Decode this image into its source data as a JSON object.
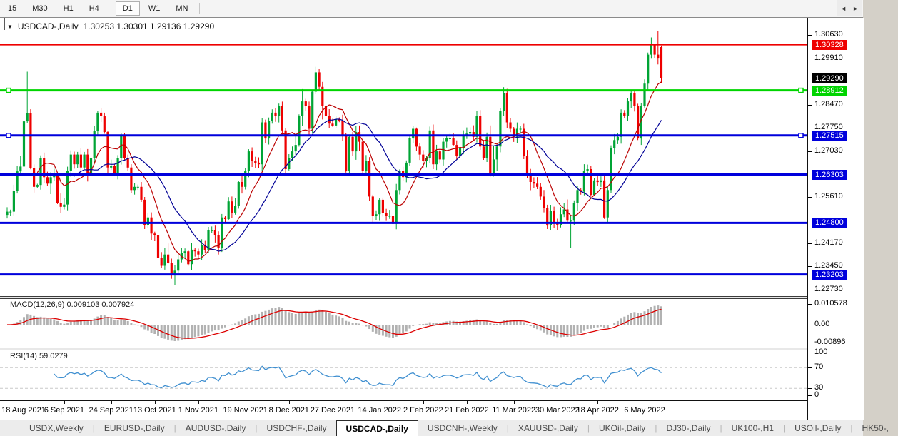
{
  "toolbar": {
    "timeframes": [
      "15",
      "M30",
      "H1",
      "H4",
      "D1",
      "W1",
      "MN"
    ],
    "active": "D1"
  },
  "window": {
    "dropdown_marker": "▼",
    "title_symbol": "USDCAD-,Daily",
    "ohlc_text": "1.30253 1.30301 1.29136 1.29290"
  },
  "price_axis": {
    "ticks": [
      "1.30630",
      "1.29910",
      "1.28470",
      "1.27750",
      "1.27030",
      "1.25610",
      "1.24170",
      "1.23450",
      "1.22730"
    ],
    "current_price": "1.29290"
  },
  "hlines": [
    {
      "price": 1.30328,
      "label": "1.30328",
      "color": "#ee0000",
      "width": 2,
      "handles": false
    },
    {
      "price": 1.28912,
      "label": "1.28912",
      "color": "#00d400",
      "width": 3,
      "handles": true
    },
    {
      "price": 1.27515,
      "label": "1.27515",
      "color": "#0000dc",
      "width": 3,
      "handles": true
    },
    {
      "price": 1.26303,
      "label": "1.26303",
      "color": "#0000dc",
      "width": 3,
      "handles": false
    },
    {
      "price": 1.248,
      "label": "1.24800",
      "color": "#0000dc",
      "width": 3,
      "handles": false
    },
    {
      "price": 1.23203,
      "label": "1.23203",
      "color": "#0000dc",
      "width": 3,
      "handles": false
    }
  ],
  "indicators": {
    "macd": {
      "name": "MACD(12,26,9)",
      "values": "0.009103 0.007924",
      "axis": [
        "0.010578",
        "0.00",
        "-0.00896"
      ],
      "fast": 12,
      "slow": 26,
      "signal": 9,
      "hist_color": "#b2b2b2",
      "signal_color": "#dd0000"
    },
    "rsi": {
      "name": "RSI(14)",
      "value": "59.0279",
      "axis": [
        "100",
        "70",
        "30",
        "0"
      ],
      "period": 14,
      "line_color": "#3f8fd0",
      "levels": [
        70,
        30
      ]
    }
  },
  "date_axis": {
    "ticks": [
      {
        "label": "18 Aug 2021",
        "bar": 4
      },
      {
        "label": "6 Sep 2021",
        "bar": 17
      },
      {
        "label": "24 Sep 2021",
        "bar": 31
      },
      {
        "label": "13 Oct 2021",
        "bar": 44
      },
      {
        "label": "1 Nov 2021",
        "bar": 57
      },
      {
        "label": "19 Nov 2021",
        "bar": 71
      },
      {
        "label": "8 Dec 2021",
        "bar": 84
      },
      {
        "label": "27 Dec 2021",
        "bar": 97
      },
      {
        "label": "14 Jan 2022",
        "bar": 111
      },
      {
        "label": "2 Feb 2022",
        "bar": 124
      },
      {
        "label": "21 Feb 2022",
        "bar": 137
      },
      {
        "label": "11 Mar 2022",
        "bar": 151
      },
      {
        "label": "30 Mar 2022",
        "bar": 164
      },
      {
        "label": "18 Apr 2022",
        "bar": 176
      },
      {
        "label": "6 May 2022",
        "bar": 190
      }
    ]
  },
  "tabs": {
    "items": [
      "USDX,Weekly",
      "EURUSD-,Daily",
      "AUDUSD-,Daily",
      "USDCHF-,Daily",
      "USDCAD-,Daily",
      "USDCNH-,Weekly",
      "XAUUSD-,Daily",
      "UKOil-,Daily",
      "DJ30-,Daily",
      "UK100-,H1",
      "USOil-,Daily",
      "HK50-,"
    ],
    "active_index": 4,
    "scroll_left": "◄",
    "scroll_right": "►"
  },
  "chart_data": {
    "type": "candlestick",
    "symbol": "USDCAD-",
    "timeframe": "Daily",
    "ylim": [
      1.2253,
      1.30785
    ],
    "bull_color": "#00a435",
    "bear_color": "#ee0000",
    "closes": [
      1.2515,
      1.2515,
      1.258,
      1.264,
      1.2655,
      1.2795,
      1.282,
      1.265,
      1.2592,
      1.2598,
      1.2682,
      1.2622,
      1.2602,
      1.2622,
      1.2628,
      1.2542,
      1.253,
      1.2537,
      1.2642,
      1.2692,
      1.2662,
      1.2692,
      1.2652,
      1.2692,
      1.2628,
      1.2682,
      1.2765,
      1.2822,
      1.2812,
      1.2762,
      1.2652,
      1.2657,
      1.2632,
      1.2682,
      1.2752,
      1.2682,
      1.2652,
      1.2582,
      1.2592,
      1.2592,
      1.2552,
      1.2472,
      1.2497,
      1.2447,
      1.2442,
      1.2372,
      1.2347,
      1.2382,
      1.2357,
      1.2322,
      1.2332,
      1.2367,
      1.2387,
      1.2392,
      1.2352,
      1.2397,
      1.2392,
      1.2382,
      1.2412,
      1.2397,
      1.2457,
      1.2457,
      1.2442,
      1.2402,
      1.2497,
      1.2492,
      1.2547,
      1.2512,
      1.2532,
      1.2607,
      1.2592,
      1.2642,
      1.2702,
      1.2672,
      1.2667,
      1.2662,
      1.2792,
      1.2742,
      1.2797,
      1.2822,
      1.2812,
      1.2842,
      1.2767,
      1.2647,
      1.2682,
      1.2702,
      1.2722,
      1.2812,
      1.2857,
      1.2842,
      1.2772,
      1.2887,
      1.2947,
      1.2902,
      1.2842,
      1.2812,
      1.2788,
      1.2782,
      1.2802,
      1.2797,
      1.2752,
      1.2642,
      1.2747,
      1.2702,
      1.2762,
      1.2732,
      1.2642,
      1.2672,
      1.2562,
      1.2502,
      1.2507,
      1.2552,
      1.2512,
      1.2502,
      1.2502,
      1.2477,
      1.2582,
      1.2642,
      1.2622,
      1.2667,
      1.2742,
      1.2772,
      1.2717,
      1.2692,
      1.2672,
      1.2682,
      1.2767,
      1.2662,
      1.2702,
      1.2677,
      1.2732,
      1.2742,
      1.2742,
      1.2722,
      1.2687,
      1.2712,
      1.2752,
      1.2757,
      1.2762,
      1.2747,
      1.2812,
      1.2717,
      1.2682,
      1.2747,
      1.2627,
      1.2677,
      1.2717,
      1.2827,
      1.2882,
      1.2792,
      1.2772,
      1.2747,
      1.2772,
      1.2772,
      1.2687,
      1.2627,
      1.2607,
      1.2602,
      1.2592,
      1.2562,
      1.2527,
      1.2472,
      1.2517,
      1.2482,
      1.2472,
      1.2507,
      1.2522,
      1.2487,
      1.2487,
      1.2542,
      1.2582,
      1.2577,
      1.2642,
      1.2647,
      1.2567,
      1.2612,
      1.2607,
      1.2612,
      1.2497,
      1.2582,
      1.2712,
      1.2737,
      1.2747,
      1.2822,
      1.2812,
      1.2857,
      1.2882,
      1.2842,
      1.2742,
      1.2842,
      1.2912,
      1.3002,
      1.3032,
      1.3002,
      1.2992,
      1.2929
    ],
    "overrides": {
      "6": {
        "h": 1.2949
      },
      "50": {
        "l": 1.2288
      },
      "92": {
        "h": 1.2964
      },
      "148": {
        "h": 1.2901
      },
      "168": {
        "l": 1.2403
      },
      "194": {
        "h": 1.3076
      },
      "195": {
        "o": 1.30253,
        "h": 1.30301,
        "l": 1.29136,
        "c": 1.2929
      }
    },
    "moving_averages": [
      {
        "period": 10,
        "color": "#bb0000"
      },
      {
        "period": 21,
        "color": "#000096"
      }
    ]
  }
}
